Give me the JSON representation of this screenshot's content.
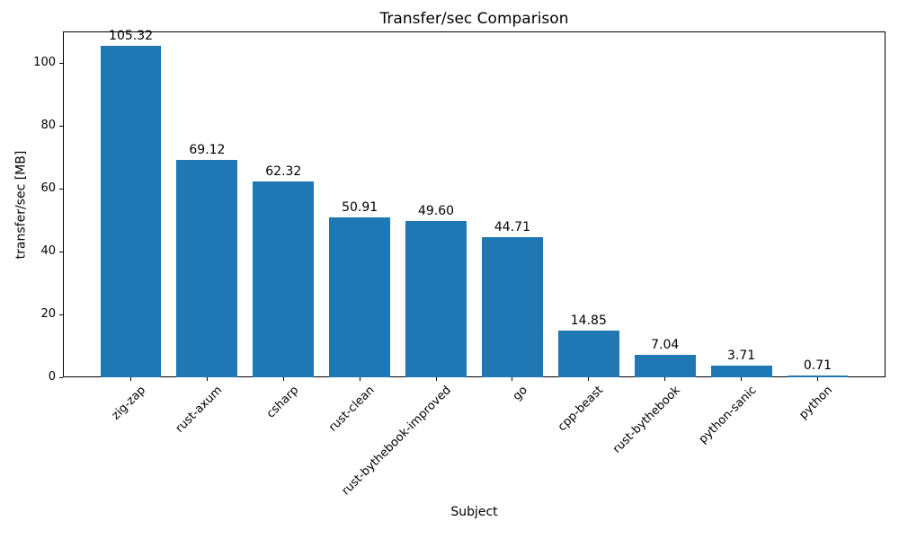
{
  "chart_data": {
    "type": "bar",
    "title": "Transfer/sec Comparison",
    "xlabel": "Subject",
    "ylabel": "transfer/sec [MB]",
    "categories": [
      "zig-zap",
      "rust-axum",
      "csharp",
      "rust-clean",
      "rust-bythebook-improved",
      "go",
      "cpp-beast",
      "rust-bythebook",
      "python-sanic",
      "python"
    ],
    "values": [
      105.32,
      69.12,
      62.32,
      50.91,
      49.6,
      44.71,
      14.85,
      7.04,
      3.71,
      0.71
    ],
    "value_labels": [
      "105.32",
      "69.12",
      "62.32",
      "50.91",
      "49.60",
      "44.71",
      "14.85",
      "7.04",
      "3.71",
      "0.71"
    ],
    "yticks": [
      0,
      20,
      40,
      60,
      80,
      100
    ],
    "ylim": [
      0,
      110
    ],
    "bar_color": "#1f77b4",
    "axis_color": "#000000",
    "background_color": "#ffffff",
    "grid": false,
    "legend": null,
    "xtick_rotation_deg": 45
  }
}
